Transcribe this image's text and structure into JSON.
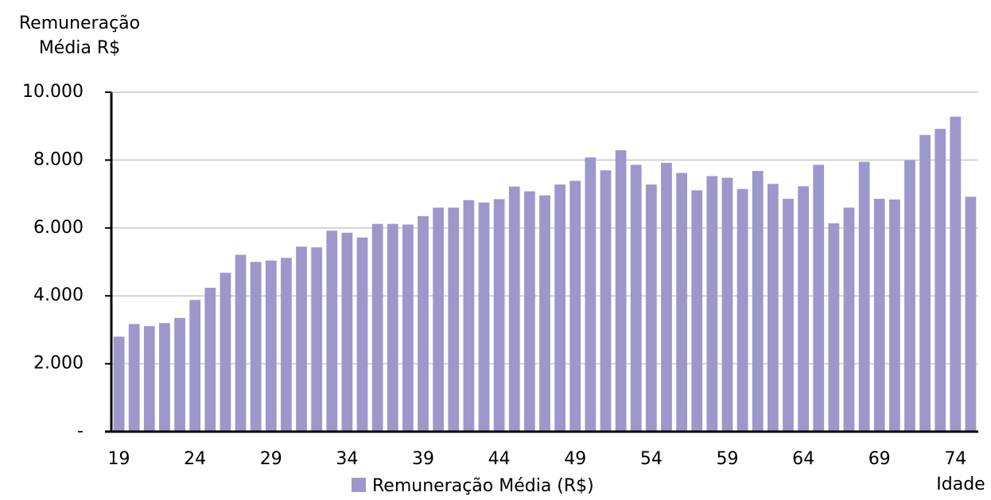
{
  "chart_data": {
    "type": "bar",
    "y_label": [
      "Remuneração",
      "Média R$"
    ],
    "x_label": "Idade",
    "categories": [
      "19",
      null,
      null,
      null,
      null,
      "24",
      null,
      null,
      null,
      null,
      "29",
      null,
      null,
      null,
      null,
      "34",
      null,
      null,
      null,
      null,
      "39",
      null,
      null,
      null,
      null,
      "44",
      null,
      null,
      null,
      null,
      "49",
      null,
      null,
      null,
      null,
      "54",
      null,
      null,
      null,
      null,
      "59",
      null,
      null,
      null,
      null,
      "64",
      null,
      null,
      null,
      null,
      "69",
      null,
      null,
      null,
      null,
      "74",
      null
    ],
    "series": [
      {
        "name": "Remuneração Média (R$)",
        "color": "#9c98cb",
        "values": [
          2800,
          3170,
          3110,
          3200,
          3350,
          3880,
          4240,
          4680,
          5210,
          5000,
          5040,
          5120,
          5450,
          5430,
          5920,
          5860,
          5720,
          6120,
          6120,
          6100,
          6350,
          6600,
          6600,
          6820,
          6750,
          6850,
          7220,
          7080,
          6960,
          7280,
          7390,
          8080,
          7700,
          8290,
          7860,
          7280,
          7920,
          7620,
          7110,
          7530,
          7480,
          7150,
          7680,
          7300,
          6860,
          7230,
          7860,
          6140,
          6600,
          7950,
          6860,
          6840,
          8000,
          8740,
          8920,
          9280,
          6920
        ]
      }
    ],
    "ylim": [
      0,
      10000
    ],
    "yticks": [
      {
        "value": 0,
        "label": "-"
      },
      {
        "value": 2000,
        "label": "2.000"
      },
      {
        "value": 4000,
        "label": "4.000"
      },
      {
        "value": 6000,
        "label": "6.000"
      },
      {
        "value": 8000,
        "label": "8.000"
      },
      {
        "value": 10000,
        "label": "10.000"
      }
    ],
    "grid": true,
    "legend": "bottom"
  }
}
